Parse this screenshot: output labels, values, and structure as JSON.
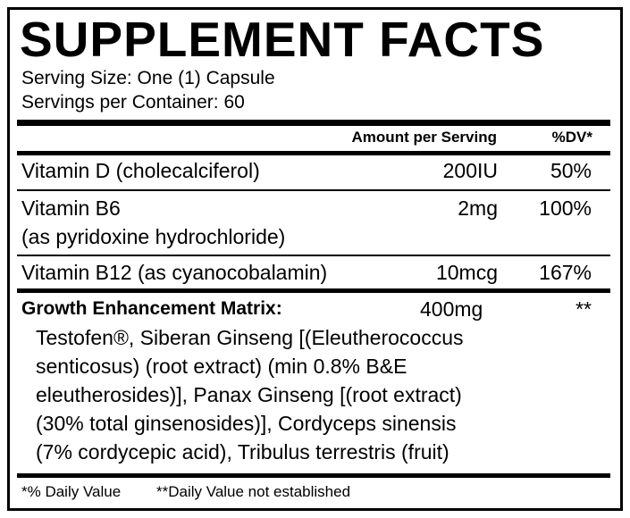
{
  "title": "SUPPLEMENT FACTS",
  "serving_size": "Serving Size: One (1) Capsule",
  "servings_per_container": "Servings per Container: 60",
  "header": {
    "amount": "Amount per Serving",
    "dv": "%DV*"
  },
  "rows": [
    {
      "name": "Vitamin D (cholecalciferol)",
      "amount": "200IU",
      "dv": "50%"
    },
    {
      "name": "Vitamin B6",
      "name_line2": "(as pyridoxine hydrochloride)",
      "amount": "2mg",
      "dv": "100%"
    },
    {
      "name": "Vitamin B12 (as cyanocobalamin)",
      "amount": "10mcg",
      "dv": "167%"
    }
  ],
  "blend": {
    "name": "Growth Enhancement Matrix:",
    "amount": "400mg",
    "dv": "**",
    "ingredients_lines": [
      "Testofen®, Siberan Ginseng [(Eleutherococcus",
      "senticosus) (root extract) (min 0.8% B&E",
      "eleutherosides)], Panax Ginseng [(root extract)",
      "(30% total ginsenosides)], Cordyceps sinensis",
      "(7% cordycepic acid), Tribulus terrestris (fruit)"
    ]
  },
  "footnote": {
    "dv": "*% Daily Value",
    "not_established": "**Daily Value not established"
  }
}
